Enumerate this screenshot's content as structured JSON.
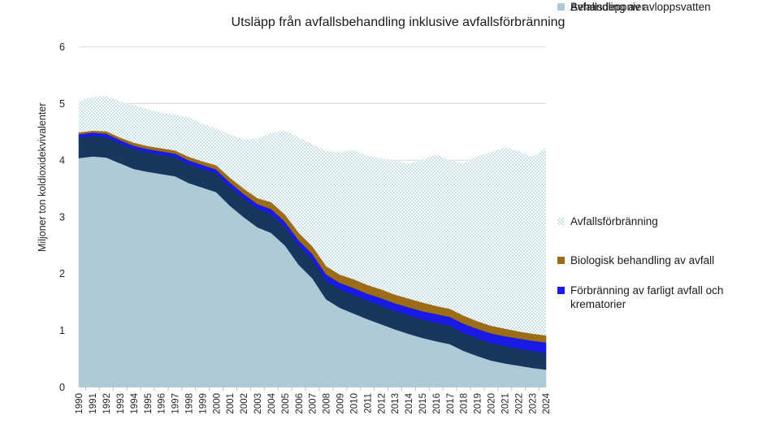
{
  "title": "Utsläpp från avfallsbehandling inklusive avfallsförbränning",
  "y_axis": {
    "label": "Miljoner ton koldioxidekvivalenter",
    "ticks": [
      "0",
      "1",
      "2",
      "3",
      "4",
      "5",
      "6"
    ]
  },
  "x_axis": {
    "first_year": "1990",
    "last_year": "2024"
  },
  "legend": {
    "items": [
      {
        "label": "Avfallsförbränning",
        "swatch": "dotted"
      },
      {
        "label": "Biologisk behandling av avfall",
        "swatch": "#9C6D16"
      },
      {
        "label": "Förbränning av farligt avfall och krematorier",
        "swatch": "#1A1AE6"
      },
      {
        "label": "Behandling av avloppsvatten",
        "swatch": "#17375E"
      },
      {
        "label": "Avfallsdeponier",
        "swatch": "#AFCAD7"
      }
    ]
  },
  "colors": {
    "gridline": "#D9D9D9",
    "tick": "#BFBFBF",
    "axis_text": "#262626",
    "pattern_dot": "#C9DFE9",
    "deponier": "#AFCAD7",
    "avloppsvatten": "#17375E",
    "farligt_avfall": "#1A1AE6",
    "biologisk": "#9C6D16"
  },
  "chart_data": {
    "type": "area",
    "stacked": true,
    "title": "Utsläpp från avfallsbehandling inklusive avfallsförbränning",
    "xlabel": "",
    "ylabel": "Miljoner ton koldioxidekvivalenter",
    "ylim": [
      0,
      6
    ],
    "yticks": [
      0,
      1,
      2,
      3,
      4,
      5,
      6
    ],
    "grid": true,
    "legend_position": "right",
    "categories": [
      "1990",
      "1991",
      "1992",
      "1993",
      "1994",
      "1995",
      "1996",
      "1997",
      "1998",
      "1999",
      "2000",
      "2001",
      "2002",
      "2003",
      "2004",
      "2005",
      "2006",
      "2007",
      "2008",
      "2009",
      "2010",
      "2011",
      "2012",
      "2013",
      "2014",
      "2015",
      "2016",
      "2017",
      "2018",
      "2019",
      "2020",
      "2021",
      "2022",
      "2023",
      "2024"
    ],
    "series": [
      {
        "name": "Avfallsdeponier",
        "color": "#AFCAD7",
        "values": [
          4.04,
          4.07,
          4.05,
          3.95,
          3.85,
          3.8,
          3.76,
          3.72,
          3.6,
          3.52,
          3.44,
          3.2,
          3.0,
          2.82,
          2.72,
          2.5,
          2.16,
          1.92,
          1.55,
          1.4,
          1.3,
          1.2,
          1.11,
          1.02,
          0.94,
          0.87,
          0.81,
          0.76,
          0.64,
          0.55,
          0.47,
          0.42,
          0.38,
          0.34,
          0.31
        ]
      },
      {
        "name": "Behandling av avloppsvatten",
        "color": "#17375E",
        "values": [
          0.36,
          0.36,
          0.36,
          0.35,
          0.35,
          0.34,
          0.34,
          0.34,
          0.33,
          0.33,
          0.33,
          0.33,
          0.33,
          0.33,
          0.33,
          0.33,
          0.33,
          0.33,
          0.33,
          0.33,
          0.33,
          0.33,
          0.33,
          0.33,
          0.33,
          0.33,
          0.33,
          0.33,
          0.32,
          0.32,
          0.31,
          0.31,
          0.3,
          0.3,
          0.29
        ]
      },
      {
        "name": "Förbränning av farligt avfall och krematorier",
        "color": "#1A1AE6",
        "values": [
          0.06,
          0.06,
          0.06,
          0.06,
          0.06,
          0.06,
          0.06,
          0.06,
          0.07,
          0.07,
          0.07,
          0.08,
          0.08,
          0.08,
          0.09,
          0.09,
          0.1,
          0.1,
          0.11,
          0.11,
          0.12,
          0.12,
          0.13,
          0.13,
          0.14,
          0.14,
          0.15,
          0.15,
          0.16,
          0.16,
          0.17,
          0.17,
          0.18,
          0.18,
          0.19
        ]
      },
      {
        "name": "Biologisk behandling av avfall",
        "color": "#9C6D16",
        "values": [
          0.03,
          0.03,
          0.04,
          0.04,
          0.05,
          0.05,
          0.05,
          0.05,
          0.06,
          0.06,
          0.07,
          0.08,
          0.09,
          0.1,
          0.12,
          0.12,
          0.13,
          0.13,
          0.14,
          0.14,
          0.15,
          0.15,
          0.15,
          0.15,
          0.15,
          0.15,
          0.14,
          0.14,
          0.14,
          0.13,
          0.13,
          0.13,
          0.12,
          0.12,
          0.12
        ]
      },
      {
        "name": "Avfallsförbränning",
        "color": "#C9DFE9",
        "pattern": "dotted",
        "values": [
          0.56,
          0.59,
          0.62,
          0.64,
          0.66,
          0.65,
          0.63,
          0.63,
          0.7,
          0.66,
          0.65,
          0.76,
          0.87,
          1.05,
          1.22,
          1.48,
          1.68,
          1.8,
          2.03,
          2.16,
          2.28,
          2.28,
          2.31,
          2.37,
          2.38,
          2.51,
          2.67,
          2.62,
          2.68,
          2.91,
          3.06,
          3.2,
          3.18,
          3.12,
          3.3
        ]
      }
    ]
  }
}
